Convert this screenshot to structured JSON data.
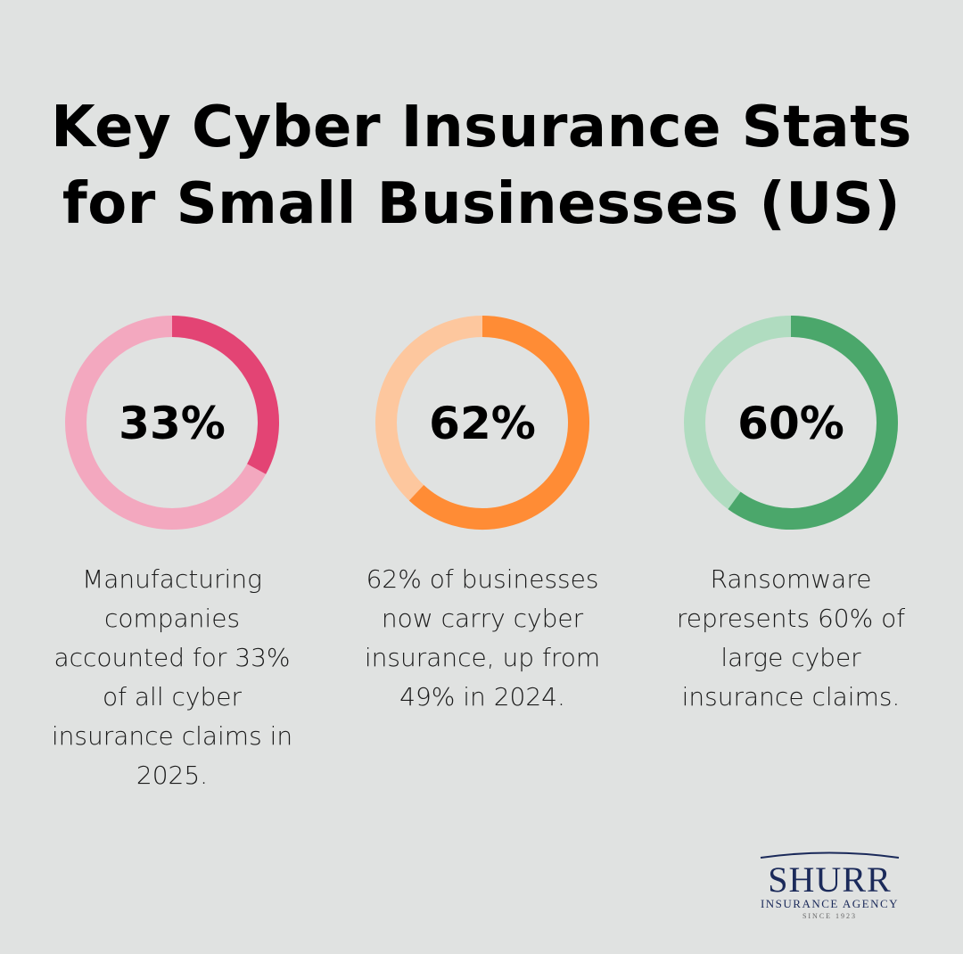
{
  "title_line1": "Key Cyber Insurance Stats",
  "title_line2": "for Small Businesses (US)",
  "chart_data": [
    {
      "type": "pie",
      "value": 33,
      "label": "33%",
      "description": "Manufacturing companies accounted for 33% of all cyber insurance claims in 2025.",
      "colors": {
        "value": "#e34474",
        "rest": "#f3a8bf"
      }
    },
    {
      "type": "pie",
      "value": 62,
      "label": "62%",
      "description": "62% of businesses now carry cyber insurance, up from 49% in 2024.",
      "colors": {
        "value": "#ff8c35",
        "rest": "#fdc79e"
      }
    },
    {
      "type": "pie",
      "value": 60,
      "label": "60%",
      "description": "Ransomware represents 60% of large cyber insurance claims.",
      "colors": {
        "value": "#4ba76b",
        "rest": "#b0dcc0"
      }
    }
  ],
  "logo": {
    "name": "SHURR",
    "subtitle": "INSURANCE AGENCY",
    "since": "SINCE 1923"
  }
}
